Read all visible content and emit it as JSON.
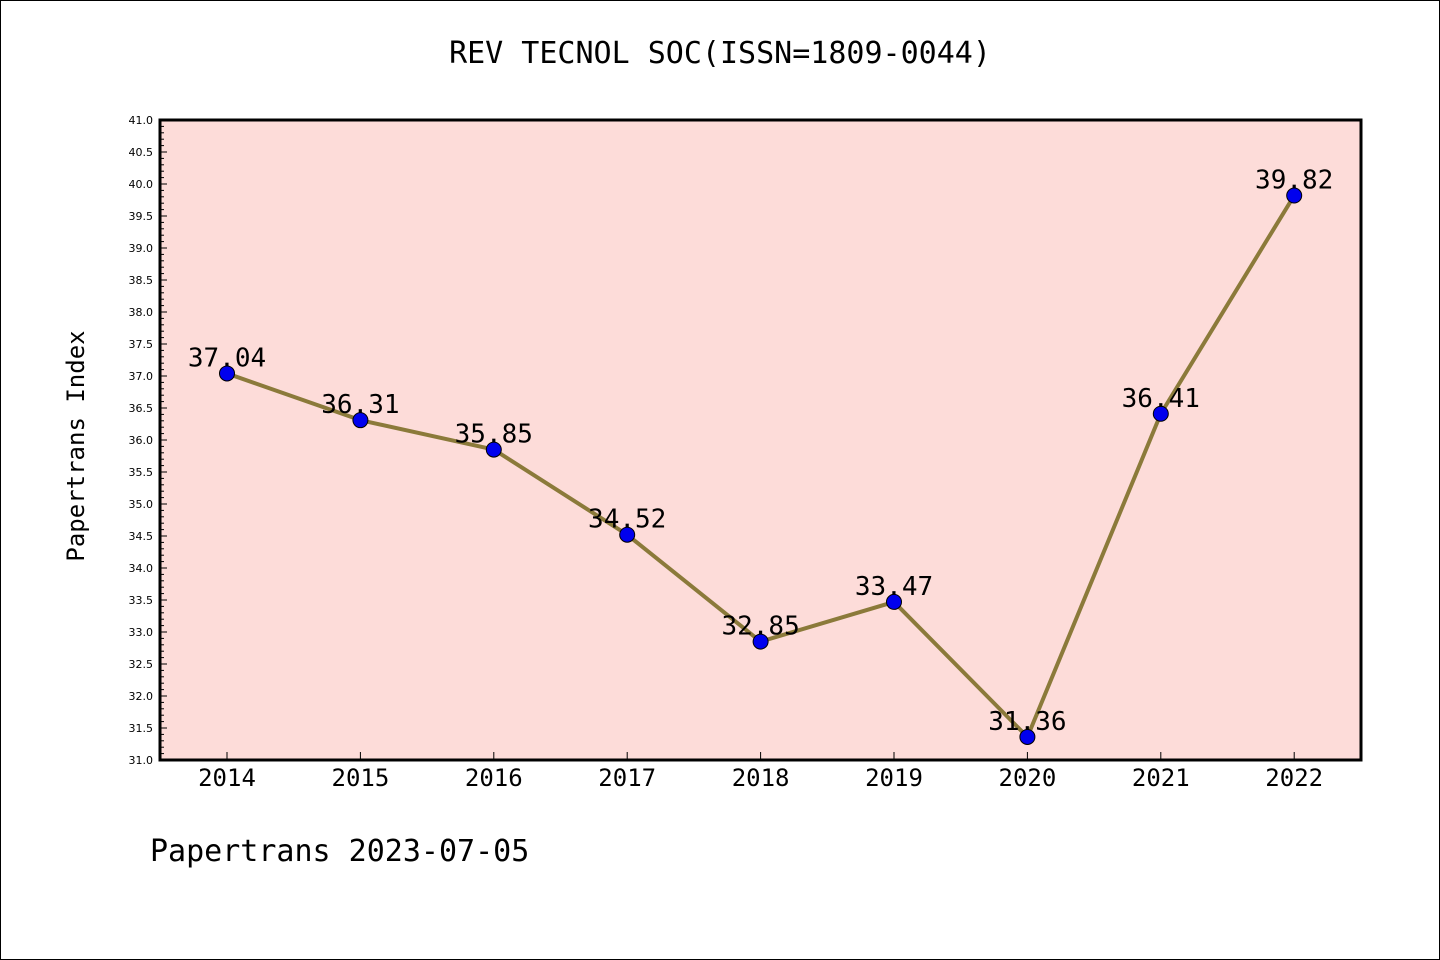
{
  "chart_data": {
    "type": "line",
    "title": "REV TECNOL SOC(ISSN=1809-0044)",
    "ylabel": "Papertrans Index",
    "xlabel": "",
    "categories": [
      "2014",
      "2015",
      "2016",
      "2017",
      "2018",
      "2019",
      "2020",
      "2021",
      "2022"
    ],
    "series": [
      {
        "values": [
          37.04,
          36.31,
          35.85,
          34.52,
          32.85,
          33.47,
          31.36,
          36.41,
          39.82
        ],
        "labels": [
          "37.04",
          "36.31",
          "35.85",
          "34.52",
          "32.85",
          "33.47",
          "31.36",
          "36.41",
          "39.82"
        ]
      }
    ],
    "ylim": [
      31.0,
      41.0
    ],
    "y_ticks": [
      "31.0",
      "31.5",
      "32.0",
      "32.5",
      "33.0",
      "33.5",
      "34.0",
      "34.5",
      "35.0",
      "35.5",
      "36.0",
      "36.5",
      "37.0",
      "37.5",
      "38.0",
      "38.5",
      "39.0",
      "39.5",
      "40.0",
      "40.5",
      "41.0"
    ],
    "grid": false,
    "legend": "none",
    "colors": {
      "plot_background": "#fddcd9",
      "line": "#8b7a3a",
      "marker": "#0000ee",
      "marker_edge": "#000000"
    }
  },
  "footer": {
    "text": "Papertrans 2023-07-05"
  }
}
